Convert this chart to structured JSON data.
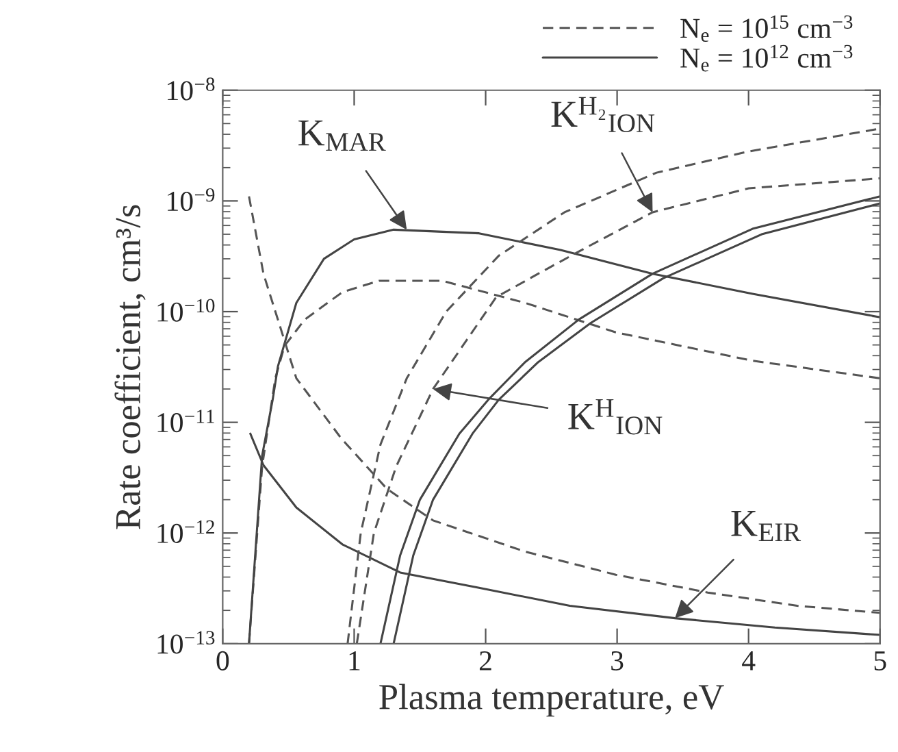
{
  "chart_data": {
    "type": "line",
    "xlabel": "Plasma temperature, eV",
    "ylabel": "Rate coefficient, cm³/s",
    "log": "y",
    "grid": false,
    "legend": "top right",
    "marker": "none",
    "xlim": [
      0,
      5
    ],
    "xticks": [
      0,
      1,
      2,
      3,
      4,
      5
    ],
    "ylim": [
      1e-13,
      1e-08
    ],
    "yticks": [
      {
        "value": 1e-13,
        "label": "10$^{−13}$"
      },
      {
        "value": 1e-12,
        "label": "10$^{−12}$"
      },
      {
        "value": 1e-11,
        "label": "10$^{−11}$"
      },
      {
        "value": 1e-10,
        "label": "10$^{−10}$"
      },
      {
        "value": 1e-09,
        "label": "10$^{−9}$"
      },
      {
        "value": 1e-08,
        "label": "10$^{−8}$"
      }
    ],
    "series": [
      {
        "name": "N$_{e}$ = 10$^{15}$ cm$^{−3}$",
        "color": "#555555",
        "line_style": "dashed",
        "x": [
          0.2,
          0.3,
          0.4,
          0.47,
          0.625,
          0.91,
          1.19,
          1.67,
          2.3,
          2.99,
          4.03,
          5.0
        ],
        "values": [
          1e-13,
          4e-12,
          2.5e-11,
          4.9e-11,
          8.5e-11,
          1.5e-10,
          1.9e-10,
          1.9e-10,
          1.2e-10,
          6.5e-11,
          3.6e-11,
          2.5e-11
        ]
      },
      {
        "name": "N$_{e}$ = 10$^{12}$ cm$^{−3}$",
        "color": "#444444",
        "line_style": "solid",
        "x": [
          0.2,
          0.3,
          0.38,
          0.42,
          0.56,
          0.77,
          1.0,
          1.3,
          1.95,
          2.57,
          3.27,
          4.03,
          5.0
        ],
        "values": [
          1e-13,
          5e-12,
          1.6e-11,
          3.2e-11,
          1.2e-10,
          3e-10,
          4.5e-10,
          5.5e-10,
          5.1e-10,
          3.6e-10,
          2.2e-10,
          1.45e-10,
          8.9e-11
        ]
      },
      {
        "color": "#555555",
        "line_style": "dashed",
        "x": [
          0.2,
          0.31,
          0.56,
          0.9,
          1.25,
          1.6,
          2.3,
          2.99,
          3.69,
          4.37,
          5.0
        ],
        "values": [
          1.1e-09,
          2.2e-10,
          2.5e-11,
          7.2e-12,
          2.5e-12,
          1.3e-12,
          6.8e-13,
          4.2e-13,
          2.9e-13,
          2.2e-13,
          1.9e-13
        ]
      },
      {
        "color": "#444444",
        "line_style": "solid",
        "x": [
          0.21,
          0.31,
          0.56,
          0.91,
          1.35,
          1.95,
          2.64,
          3.44,
          4.2,
          5.0
        ],
        "values": [
          7.9e-12,
          4.1e-12,
          1.7e-12,
          7.9e-13,
          4.4e-13,
          3.2e-13,
          2.2e-13,
          1.7e-13,
          1.4e-13,
          1.2e-13
        ]
      },
      {
        "color": "#555555",
        "line_style": "dashed",
        "x": [
          0.95,
          1.05,
          1.2,
          1.4,
          1.7,
          2.1,
          2.6,
          3.3,
          4.0,
          5.0
        ],
        "values": [
          1e-13,
          1e-12,
          6.3e-12,
          2.5e-11,
          1e-10,
          3.2e-10,
          7.9e-10,
          1.8e-09,
          2.8e-09,
          4.5e-09
        ]
      },
      {
        "color": "#555555",
        "line_style": "dashed",
        "x": [
          1.02,
          1.15,
          1.32,
          1.6,
          2.08,
          2.4,
          2.71,
          3.27,
          4.0,
          5.0
        ],
        "values": [
          1e-13,
          1e-12,
          4e-12,
          2e-11,
          1.35e-10,
          2.2e-10,
          3.5e-10,
          7.9e-10,
          1.3e-09,
          1.6e-09
        ]
      },
      {
        "color": "#444444",
        "line_style": "solid",
        "x": [
          1.2,
          1.35,
          1.5,
          1.8,
          2.02,
          2.3,
          2.71,
          3.27,
          4.03,
          5.0
        ],
        "values": [
          1e-13,
          6.3e-13,
          2e-12,
          7.9e-12,
          1.6e-11,
          3.5e-11,
          8.5e-11,
          2.2e-10,
          5.6e-10,
          1.1e-09
        ]
      },
      {
        "color": "#444444",
        "line_style": "solid",
        "x": [
          1.3,
          1.45,
          1.6,
          1.9,
          2.1,
          2.4,
          2.8,
          3.35,
          4.1,
          5.0
        ],
        "values": [
          1e-13,
          6.3e-13,
          2e-12,
          7.9e-12,
          1.6e-11,
          3.5e-11,
          7.9e-11,
          2e-10,
          5e-10,
          9.5e-10
        ]
      }
    ],
    "annotations": [
      {
        "text": "K$_{MAR}$",
        "x": 1.4,
        "y": 5.5e-10
      },
      {
        "text": "K$^{H₂}$$_{ION}$",
        "x": 3.27,
        "y": 7.9e-10
      },
      {
        "text": "K$^{H}$$_{ION}$",
        "x": 1.6,
        "y": 2e-11
      },
      {
        "text": "K$_{EIR}$",
        "x": 3.44,
        "y": 1.7e-13
      }
    ]
  }
}
